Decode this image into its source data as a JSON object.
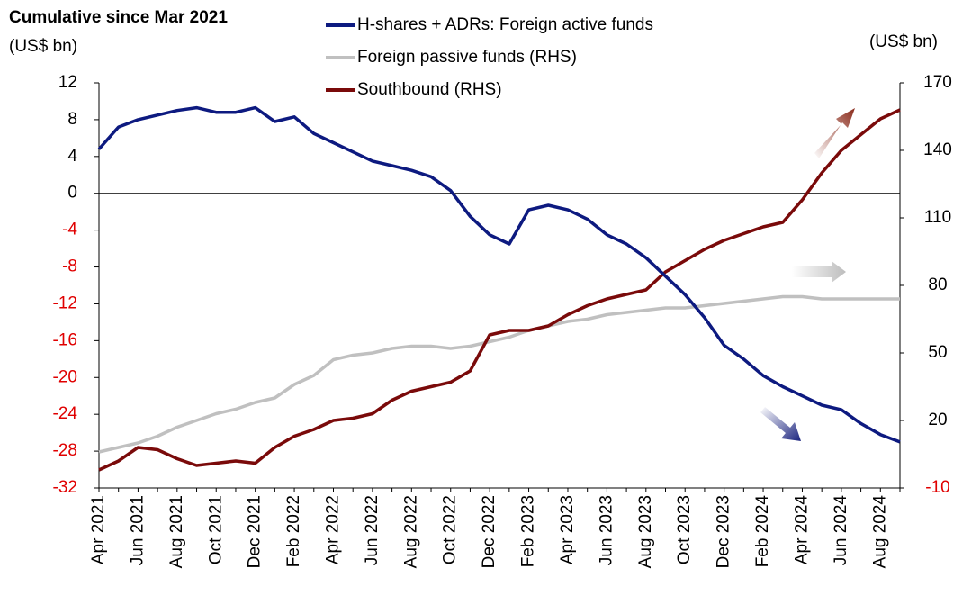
{
  "chart_data": {
    "type": "line",
    "title": "Cumulative since Mar 2021",
    "ylabel": "(US$ bn)",
    "y2label": "(US$ bn)",
    "categories": [
      "Apr 2021",
      null,
      "Jun 2021",
      null,
      "Aug 2021",
      null,
      "Oct 2021",
      null,
      "Dec 2021",
      null,
      "Feb 2022",
      null,
      "Apr 2022",
      null,
      "Jun 2022",
      null,
      "Aug 2022",
      null,
      "Oct 2022",
      null,
      "Dec 2022",
      null,
      "Feb 2023",
      null,
      "Apr 2023",
      null,
      "Jun 2023",
      null,
      "Aug 2023",
      null,
      "Oct 2023",
      null,
      "Dec 2023",
      null,
      "Feb 2024",
      null,
      "Apr 2024",
      null,
      "Jun 2024",
      null,
      "Aug 2024",
      null
    ],
    "series": [
      {
        "name": "H-shares + ADRs: Foreign active funds",
        "color": "#0d1a80",
        "values": [
          4.8,
          7.2,
          8.0,
          8.5,
          9.0,
          9.3,
          8.8,
          8.8,
          9.3,
          7.8,
          8.3,
          6.5,
          5.5,
          4.5,
          3.5,
          3.0,
          2.5,
          1.8,
          0.3,
          -2.5,
          -4.5,
          -5.5,
          -1.8,
          -1.3,
          -1.8,
          -2.8,
          -4.5,
          -5.5,
          -7,
          -9,
          -11,
          -13.5,
          -16.5,
          -18,
          -19.8,
          -21,
          -22,
          -23,
          -23.5,
          -25,
          -26.2,
          -27
        ]
      },
      {
        "name": "Foreign passive funds (RHS)",
        "color": "#c0c0c0",
        "axis": "y2",
        "values": [
          6,
          8,
          10,
          13,
          17,
          20,
          23,
          25,
          28,
          30,
          36,
          40,
          47,
          49,
          50,
          52,
          53,
          53,
          52,
          53,
          55,
          57,
          60,
          62,
          64,
          65,
          67,
          68,
          69,
          70,
          70,
          71,
          72,
          73,
          74,
          75,
          75,
          74,
          74,
          74,
          74,
          74
        ]
      },
      {
        "name": "Southbound (RHS)",
        "color": "#7a0a0a",
        "axis": "y2",
        "values": [
          -2,
          2,
          8,
          7,
          3,
          0,
          1,
          2,
          1,
          8,
          13,
          16,
          20,
          21,
          23,
          29,
          33,
          35,
          37,
          42,
          58,
          60,
          60,
          62,
          67,
          71,
          74,
          76,
          78,
          86,
          91,
          96,
          100,
          103,
          106,
          108,
          118,
          130,
          140,
          147,
          154,
          158
        ]
      }
    ],
    "ylim": [
      -32,
      12
    ],
    "yticks": [
      -32,
      -28,
      -24,
      -20,
      -16,
      -12,
      -8,
      -4,
      0,
      4,
      8,
      12
    ],
    "y2lim": [
      -10,
      170
    ],
    "y2ticks": [
      -10,
      20,
      50,
      80,
      110,
      140,
      170
    ],
    "negative_tick_color": "#e00000"
  }
}
